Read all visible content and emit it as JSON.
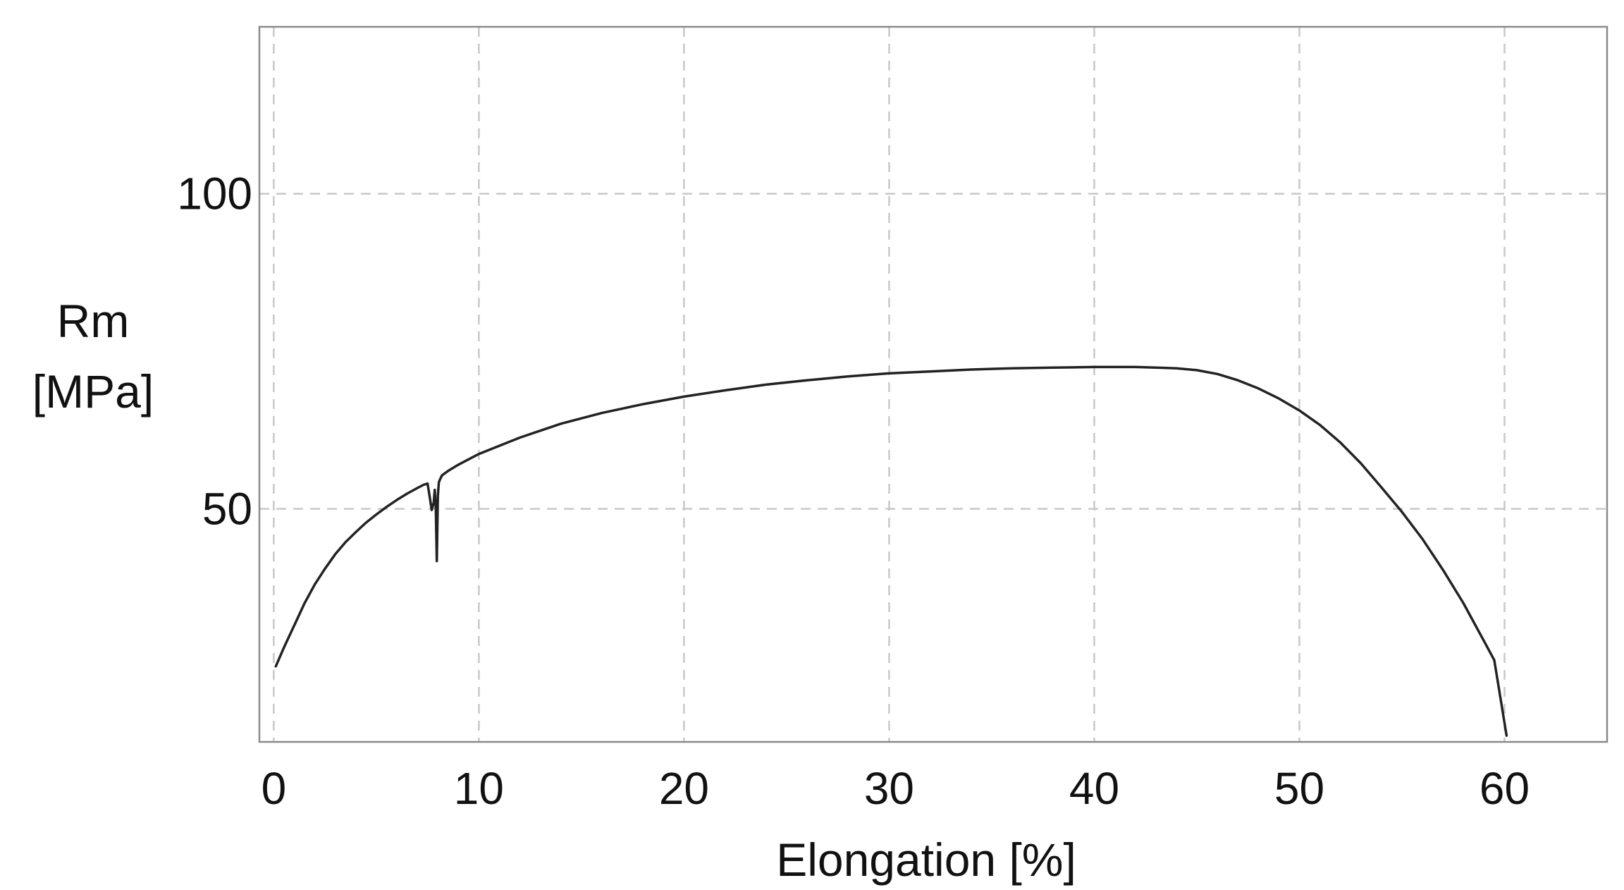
{
  "chart_data": {
    "type": "line",
    "title": "",
    "xlabel": "Elongation [%]",
    "ylabel_line1": "Rm",
    "ylabel_line2": "[MPa]",
    "xlim": [
      -0.7,
      65
    ],
    "ylim": [
      13,
      126.5
    ],
    "x_ticks": [
      0,
      10,
      20,
      30,
      40,
      50,
      60
    ],
    "x_tick_labels": [
      "0",
      "10",
      "20",
      "30",
      "40",
      "50",
      "60"
    ],
    "y_ticks": [
      50,
      100
    ],
    "y_tick_labels": [
      "50",
      "100"
    ],
    "x_grid": [
      0,
      10,
      20,
      30,
      40,
      50,
      60
    ],
    "y_grid": [
      50,
      100
    ],
    "grid": true,
    "legend": "none",
    "line_color": "#222222",
    "grid_color": "#c8c8c8",
    "series": [
      {
        "x": [
          0.1,
          0.5,
          1,
          1.5,
          2,
          2.5,
          3,
          3.5,
          4,
          4.5,
          5,
          5.5,
          6,
          6.5,
          7,
          7.3,
          7.5,
          7.6,
          7.7,
          7.8,
          7.85,
          7.9,
          7.95,
          8.0,
          8.05,
          8.1,
          8.2,
          8.5,
          9,
          10,
          12,
          14,
          16,
          18,
          20,
          22,
          24,
          26,
          28,
          30,
          32,
          34,
          36,
          38,
          40,
          42,
          44,
          45,
          46,
          47,
          48,
          49,
          50,
          51,
          52,
          53,
          54,
          55,
          56,
          57,
          58,
          59,
          59.5,
          59.8,
          60.1
        ],
        "y": [
          25,
          28,
          31.5,
          35,
          38,
          40.5,
          42.8,
          44.7,
          46.3,
          47.8,
          49.1,
          50.3,
          51.4,
          52.4,
          53.3,
          53.8,
          54,
          52,
          49.8,
          51,
          53,
          50,
          41.7,
          52,
          54.2,
          54.6,
          55.3,
          56,
          57,
          58.7,
          61.3,
          63.5,
          65.2,
          66.6,
          67.8,
          68.8,
          69.7,
          70.4,
          71,
          71.5,
          71.8,
          72.1,
          72.3,
          72.4,
          72.5,
          72.5,
          72.3,
          72,
          71.4,
          70.4,
          69.1,
          67.5,
          65.6,
          63.3,
          60.5,
          57.2,
          53.4,
          49.5,
          45.2,
          40.3,
          35,
          29,
          26,
          20,
          14
        ]
      }
    ]
  }
}
